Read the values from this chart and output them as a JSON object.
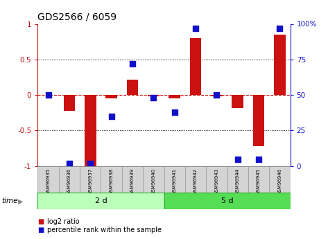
{
  "title": "GDS2566 / 6059",
  "samples": [
    "GSM96935",
    "GSM96936",
    "GSM96937",
    "GSM96938",
    "GSM96939",
    "GSM96940",
    "GSM96941",
    "GSM96942",
    "GSM96943",
    "GSM96944",
    "GSM96945",
    "GSM96946"
  ],
  "log2_ratio": [
    0.0,
    -0.22,
    -1.0,
    -0.05,
    0.22,
    -0.02,
    -0.05,
    0.8,
    -0.02,
    -0.18,
    -0.72,
    0.85
  ],
  "percentile_rank": [
    50,
    2,
    2,
    35,
    72,
    48,
    38,
    97,
    50,
    5,
    5,
    97
  ],
  "groups": [
    {
      "label": "2 d",
      "start": 0,
      "end": 6,
      "color": "#bbffbb"
    },
    {
      "label": "5 d",
      "start": 6,
      "end": 12,
      "color": "#55dd55"
    }
  ],
  "bar_color": "#cc1111",
  "dot_color": "#1111cc",
  "ylim": [
    -1,
    1
  ],
  "yticks_left": [
    -1,
    -0.5,
    0,
    0.5,
    1
  ],
  "yticks_right": [
    0,
    25,
    50,
    75,
    100
  ],
  "ytick_labels_left": [
    "-1",
    "-0.5",
    "0",
    "0.5",
    "1"
  ],
  "ytick_labels_right": [
    "0",
    "25",
    "50",
    "75",
    "100%"
  ],
  "dotted_lines": [
    0.5,
    -0.5
  ],
  "background_color": "#ffffff",
  "label_bar": "log2 ratio",
  "label_dot": "percentile rank within the sample",
  "bar_width": 0.55,
  "dot_size": 30
}
